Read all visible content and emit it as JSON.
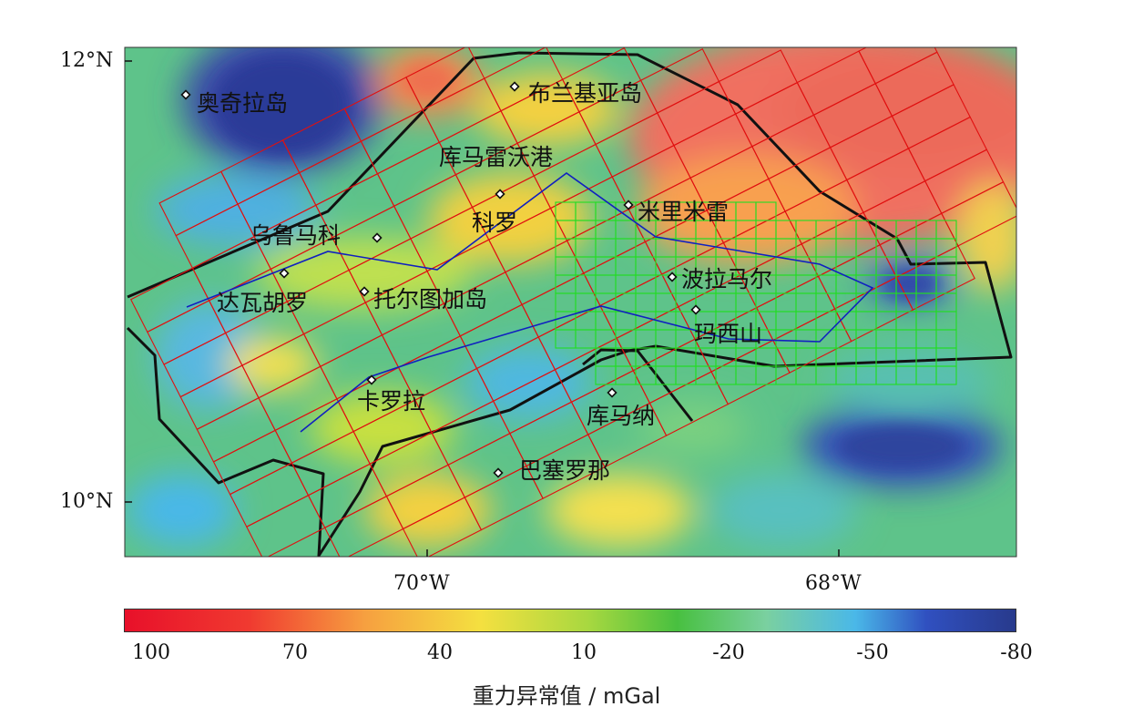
{
  "map": {
    "lat_labels": [
      "12°N",
      "10°N"
    ],
    "lon_labels": [
      "70°W",
      "68°W"
    ],
    "places": [
      {
        "key": "orchila",
        "name": "奥奇拉岛"
      },
      {
        "key": "blanquilla",
        "name": "布兰基亚岛"
      },
      {
        "key": "cumarebo",
        "name": "库马雷沃港"
      },
      {
        "key": "coro",
        "name": "科罗"
      },
      {
        "key": "urumaco",
        "name": "乌鲁马科"
      },
      {
        "key": "taboro",
        "name": "达瓦胡罗"
      },
      {
        "key": "tortuga",
        "name": "托尔图加岛"
      },
      {
        "key": "caracas",
        "name": "卡罗拉"
      },
      {
        "key": "cumana",
        "name": "库马纳"
      },
      {
        "key": "barcelona",
        "name": "巴塞罗那"
      },
      {
        "key": "lamimer",
        "name": "米里米雷"
      },
      {
        "key": "polamar",
        "name": "波拉马尔"
      },
      {
        "key": "maris",
        "name": "玛西山"
      }
    ],
    "colors": {
      "survey_red": "#e01010",
      "survey_green": "#22dd22",
      "profile_blue": "#1020c0",
      "basin_outline": "#111111"
    }
  },
  "colorbar": {
    "title": "重力异常值 / mGal",
    "ticks": [
      "100",
      "70",
      "40",
      "10",
      "-20",
      "-50",
      "-80"
    ]
  }
}
